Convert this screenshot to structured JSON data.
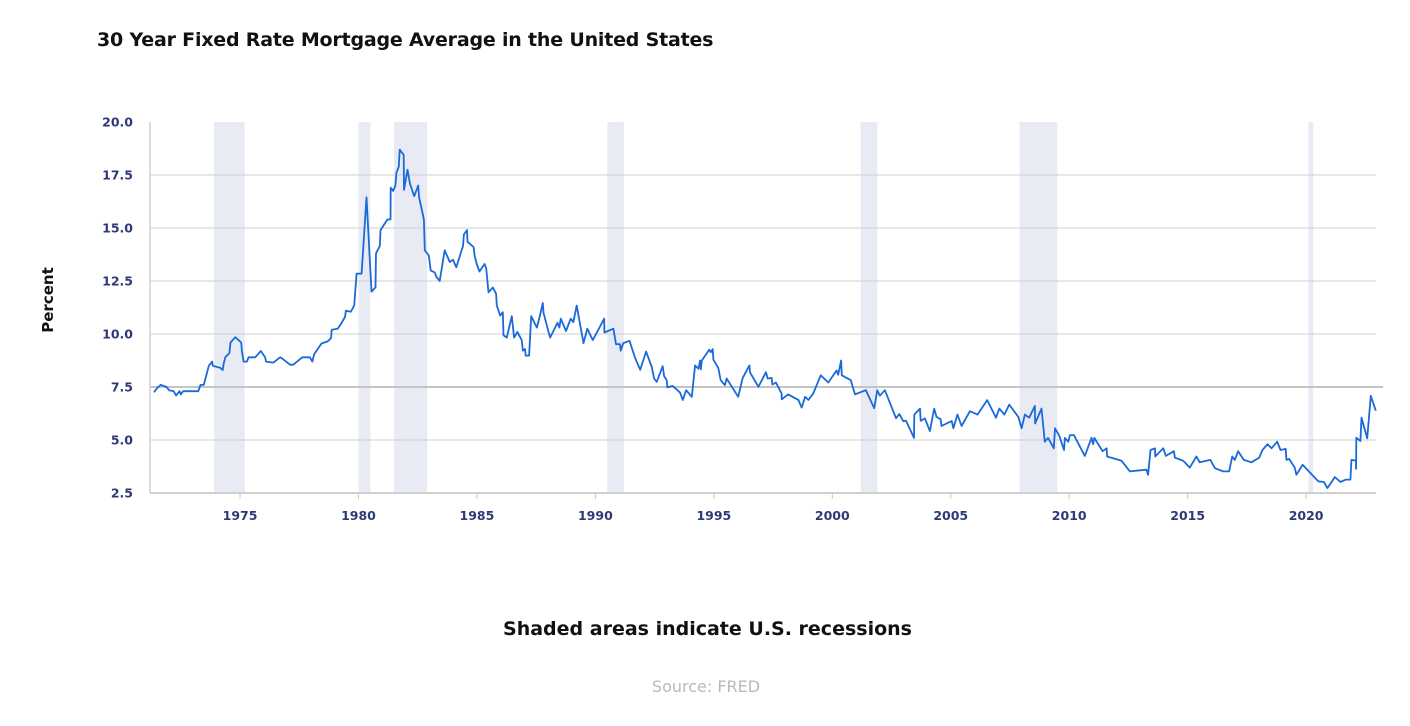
{
  "chart_data": {
    "type": "line",
    "title": "30 Year Fixed Rate Mortgage Average in the United States",
    "xlabel": "",
    "ylabel": "Percent",
    "note": "Shaded areas indicate U.S. recessions",
    "source": "Source: FRED",
    "xlim": [
      1971.2,
      2022.95
    ],
    "ylim": [
      2.5,
      20.0
    ],
    "yticks": [
      "2.5",
      "5.0",
      "7.5",
      "10.0",
      "12.5",
      "15.0",
      "17.5",
      "20.0"
    ],
    "xticks": [
      "1975",
      "1980",
      "1985",
      "1990",
      "1995",
      "2000",
      "2005",
      "2010",
      "2015",
      "2020"
    ],
    "grid": "horizontal",
    "legend": "none",
    "colors": {
      "line": "#1a6ad8",
      "recession": "#e8ebf4",
      "grid": "#cfcfcf",
      "tick_text": "#2e3a78"
    },
    "recessions": [
      [
        1973.9,
        1975.2
      ],
      [
        1980.0,
        1980.5
      ],
      [
        1981.5,
        1982.9
      ],
      [
        1990.5,
        1991.2
      ],
      [
        2001.2,
        2001.9
      ],
      [
        2007.9,
        2009.5
      ],
      [
        2020.1,
        2020.3
      ]
    ],
    "series": [
      {
        "points": [
          [
            1971.37,
            7.25
          ],
          [
            1971.5,
            7.45
          ],
          [
            1971.65,
            7.6
          ],
          [
            1971.9,
            7.5
          ],
          [
            1972.0,
            7.35
          ],
          [
            1972.2,
            7.3
          ],
          [
            1972.3,
            7.1
          ],
          [
            1972.45,
            7.3
          ],
          [
            1972.5,
            7.15
          ],
          [
            1972.6,
            7.3
          ],
          [
            1973.24,
            7.3
          ],
          [
            1973.33,
            7.6
          ],
          [
            1973.47,
            7.6
          ],
          [
            1973.68,
            8.5
          ],
          [
            1973.82,
            8.7
          ],
          [
            1973.85,
            8.5
          ],
          [
            1974.17,
            8.4
          ],
          [
            1974.27,
            8.3
          ],
          [
            1974.31,
            8.6
          ],
          [
            1974.38,
            8.9
          ],
          [
            1974.55,
            9.1
          ],
          [
            1974.6,
            9.6
          ],
          [
            1974.8,
            9.85
          ],
          [
            1975.05,
            9.6
          ],
          [
            1975.08,
            9.2
          ],
          [
            1975.15,
            8.7
          ],
          [
            1975.29,
            8.7
          ],
          [
            1975.36,
            8.9
          ],
          [
            1975.64,
            8.9
          ],
          [
            1975.88,
            9.2
          ],
          [
            1976.06,
            8.9
          ],
          [
            1976.1,
            8.7
          ],
          [
            1976.41,
            8.65
          ],
          [
            1976.69,
            8.9
          ],
          [
            1976.83,
            8.8
          ],
          [
            1977.11,
            8.55
          ],
          [
            1977.25,
            8.55
          ],
          [
            1977.63,
            8.9
          ],
          [
            1977.95,
            8.9
          ],
          [
            1978.05,
            8.7
          ],
          [
            1978.13,
            9.05
          ],
          [
            1978.44,
            9.55
          ],
          [
            1978.7,
            9.65
          ],
          [
            1978.84,
            9.8
          ],
          [
            1978.87,
            10.2
          ],
          [
            1979.12,
            10.25
          ],
          [
            1979.22,
            10.4
          ],
          [
            1979.43,
            10.8
          ],
          [
            1979.47,
            11.1
          ],
          [
            1979.68,
            11.05
          ],
          [
            1979.82,
            11.35
          ],
          [
            1979.92,
            12.85
          ],
          [
            1980.13,
            12.85
          ],
          [
            1980.34,
            16.45
          ],
          [
            1980.55,
            12.0
          ],
          [
            1980.72,
            12.2
          ],
          [
            1980.74,
            13.8
          ],
          [
            1980.9,
            14.15
          ],
          [
            1980.93,
            14.9
          ],
          [
            1981.22,
            15.4
          ],
          [
            1981.35,
            15.4
          ],
          [
            1981.36,
            16.9
          ],
          [
            1981.46,
            16.75
          ],
          [
            1981.56,
            17.0
          ],
          [
            1981.6,
            17.6
          ],
          [
            1981.7,
            17.9
          ],
          [
            1981.74,
            18.7
          ],
          [
            1981.91,
            18.45
          ],
          [
            1981.92,
            16.8
          ],
          [
            1982.07,
            17.75
          ],
          [
            1982.17,
            17.1
          ],
          [
            1982.35,
            16.5
          ],
          [
            1982.52,
            17.0
          ],
          [
            1982.56,
            16.45
          ],
          [
            1982.76,
            15.4
          ],
          [
            1982.8,
            13.95
          ],
          [
            1982.97,
            13.7
          ],
          [
            1983.05,
            13.0
          ],
          [
            1983.22,
            12.9
          ],
          [
            1983.29,
            12.7
          ],
          [
            1983.43,
            12.5
          ],
          [
            1983.64,
            13.95
          ],
          [
            1983.85,
            13.4
          ],
          [
            1983.99,
            13.5
          ],
          [
            1984.13,
            13.15
          ],
          [
            1984.41,
            14.15
          ],
          [
            1984.45,
            14.7
          ],
          [
            1984.58,
            14.9
          ],
          [
            1984.6,
            14.35
          ],
          [
            1984.86,
            14.1
          ],
          [
            1984.9,
            13.7
          ],
          [
            1984.99,
            13.3
          ],
          [
            1985.11,
            12.95
          ],
          [
            1985.32,
            13.3
          ],
          [
            1985.39,
            13.1
          ],
          [
            1985.49,
            11.96
          ],
          [
            1985.67,
            12.2
          ],
          [
            1985.81,
            11.9
          ],
          [
            1985.84,
            11.34
          ],
          [
            1985.98,
            10.87
          ],
          [
            1986.09,
            11.03
          ],
          [
            1986.12,
            9.94
          ],
          [
            1986.26,
            9.83
          ],
          [
            1986.47,
            10.84
          ],
          [
            1986.57,
            9.83
          ],
          [
            1986.71,
            10.1
          ],
          [
            1986.89,
            9.71
          ],
          [
            1986.94,
            9.21
          ],
          [
            1987.03,
            9.29
          ],
          [
            1987.06,
            8.98
          ],
          [
            1987.2,
            8.98
          ],
          [
            1987.29,
            10.84
          ],
          [
            1987.53,
            10.3
          ],
          [
            1987.67,
            10.92
          ],
          [
            1987.78,
            11.46
          ],
          [
            1987.81,
            11.0
          ],
          [
            1988.09,
            9.83
          ],
          [
            1988.4,
            10.53
          ],
          [
            1988.48,
            10.3
          ],
          [
            1988.54,
            10.72
          ],
          [
            1988.76,
            10.14
          ],
          [
            1988.96,
            10.72
          ],
          [
            1989.07,
            10.56
          ],
          [
            1989.21,
            11.34
          ],
          [
            1989.5,
            9.57
          ],
          [
            1989.66,
            10.25
          ],
          [
            1989.89,
            9.71
          ],
          [
            1990.37,
            10.72
          ],
          [
            1990.38,
            10.07
          ],
          [
            1990.76,
            10.25
          ],
          [
            1990.87,
            9.52
          ],
          [
            1991.04,
            9.52
          ],
          [
            1991.07,
            9.21
          ],
          [
            1991.18,
            9.57
          ],
          [
            1991.44,
            9.68
          ],
          [
            1991.68,
            8.86
          ],
          [
            1991.89,
            8.31
          ],
          [
            1992.14,
            9.17
          ],
          [
            1992.38,
            8.44
          ],
          [
            1992.48,
            7.9
          ],
          [
            1992.59,
            7.74
          ],
          [
            1992.84,
            8.48
          ],
          [
            1992.9,
            8.02
          ],
          [
            1993.01,
            7.82
          ],
          [
            1993.04,
            7.48
          ],
          [
            1993.26,
            7.55
          ],
          [
            1993.57,
            7.24
          ],
          [
            1993.69,
            6.89
          ],
          [
            1993.83,
            7.35
          ],
          [
            1994.07,
            7.04
          ],
          [
            1994.21,
            8.52
          ],
          [
            1994.35,
            8.36
          ],
          [
            1994.42,
            8.75
          ],
          [
            1994.45,
            8.33
          ],
          [
            1994.49,
            8.75
          ],
          [
            1994.81,
            9.26
          ],
          [
            1994.87,
            9.14
          ],
          [
            1994.95,
            9.29
          ],
          [
            1994.98,
            8.79
          ],
          [
            1995.19,
            8.39
          ],
          [
            1995.29,
            7.82
          ],
          [
            1995.47,
            7.59
          ],
          [
            1995.54,
            7.9
          ],
          [
            1996.03,
            7.04
          ],
          [
            1996.22,
            7.93
          ],
          [
            1996.5,
            8.52
          ],
          [
            1996.53,
            8.18
          ],
          [
            1996.88,
            7.51
          ],
          [
            1997.2,
            8.2
          ],
          [
            1997.27,
            7.9
          ],
          [
            1997.44,
            7.93
          ],
          [
            1997.47,
            7.62
          ],
          [
            1997.62,
            7.71
          ],
          [
            1997.86,
            7.2
          ],
          [
            1997.87,
            6.92
          ],
          [
            1998.14,
            7.15
          ],
          [
            1998.57,
            6.89
          ],
          [
            1998.71,
            6.53
          ],
          [
            1998.85,
            7.04
          ],
          [
            1998.99,
            6.89
          ],
          [
            1999.2,
            7.2
          ],
          [
            1999.51,
            8.05
          ],
          [
            1999.83,
            7.71
          ],
          [
            2000.18,
            8.28
          ],
          [
            2000.25,
            8.08
          ],
          [
            2000.37,
            8.75
          ],
          [
            2000.4,
            8.05
          ],
          [
            2000.78,
            7.82
          ],
          [
            2000.96,
            7.15
          ],
          [
            2001.42,
            7.35
          ],
          [
            2001.77,
            6.5
          ],
          [
            2001.9,
            7.35
          ],
          [
            2002.01,
            7.09
          ],
          [
            2002.22,
            7.35
          ],
          [
            2002.69,
            6.03
          ],
          [
            2002.83,
            6.22
          ],
          [
            2003.0,
            5.88
          ],
          [
            2003.11,
            5.91
          ],
          [
            2003.45,
            5.1
          ],
          [
            2003.46,
            6.2
          ],
          [
            2003.7,
            6.48
          ],
          [
            2003.73,
            5.9
          ],
          [
            2003.91,
            6.02
          ],
          [
            2004.12,
            5.42
          ],
          [
            2004.3,
            6.48
          ],
          [
            2004.4,
            6.09
          ],
          [
            2004.57,
            5.98
          ],
          [
            2004.61,
            5.66
          ],
          [
            2005.04,
            5.89
          ],
          [
            2005.11,
            5.55
          ],
          [
            2005.28,
            6.2
          ],
          [
            2005.46,
            5.66
          ],
          [
            2005.81,
            6.36
          ],
          [
            2006.13,
            6.2
          ],
          [
            2006.54,
            6.88
          ],
          [
            2006.91,
            6.05
          ],
          [
            2007.05,
            6.48
          ],
          [
            2007.26,
            6.2
          ],
          [
            2007.47,
            6.67
          ],
          [
            2007.85,
            6.09
          ],
          [
            2007.99,
            5.55
          ],
          [
            2008.13,
            6.2
          ],
          [
            2008.31,
            6.05
          ],
          [
            2008.55,
            6.61
          ],
          [
            2008.56,
            5.78
          ],
          [
            2008.83,
            6.48
          ],
          [
            2008.97,
            4.92
          ],
          [
            2009.11,
            5.1
          ],
          [
            2009.35,
            4.61
          ],
          [
            2009.4,
            5.55
          ],
          [
            2009.58,
            5.2
          ],
          [
            2009.78,
            4.53
          ],
          [
            2009.82,
            5.1
          ],
          [
            2009.96,
            4.92
          ],
          [
            2010.03,
            5.23
          ],
          [
            2010.2,
            5.23
          ],
          [
            2010.66,
            4.25
          ],
          [
            2010.94,
            5.1
          ],
          [
            2011.01,
            4.8
          ],
          [
            2011.06,
            5.1
          ],
          [
            2011.41,
            4.47
          ],
          [
            2011.58,
            4.61
          ],
          [
            2011.6,
            4.22
          ],
          [
            2012.21,
            4.02
          ],
          [
            2012.56,
            3.52
          ],
          [
            2013.26,
            3.6
          ],
          [
            2013.33,
            3.36
          ],
          [
            2013.43,
            4.53
          ],
          [
            2013.62,
            4.61
          ],
          [
            2013.63,
            4.22
          ],
          [
            2013.97,
            4.61
          ],
          [
            2014.08,
            4.25
          ],
          [
            2014.42,
            4.47
          ],
          [
            2014.46,
            4.17
          ],
          [
            2014.81,
            4.02
          ],
          [
            2015.09,
            3.7
          ],
          [
            2015.37,
            4.22
          ],
          [
            2015.51,
            3.95
          ],
          [
            2015.96,
            4.06
          ],
          [
            2016.15,
            3.67
          ],
          [
            2016.5,
            3.52
          ],
          [
            2016.75,
            3.52
          ],
          [
            2016.88,
            4.22
          ],
          [
            2016.99,
            4.06
          ],
          [
            2017.13,
            4.47
          ],
          [
            2017.37,
            4.06
          ],
          [
            2017.69,
            3.95
          ],
          [
            2018.02,
            4.17
          ],
          [
            2018.16,
            4.53
          ],
          [
            2018.37,
            4.8
          ],
          [
            2018.54,
            4.61
          ],
          [
            2018.78,
            4.92
          ],
          [
            2018.92,
            4.53
          ],
          [
            2019.14,
            4.58
          ],
          [
            2019.17,
            4.06
          ],
          [
            2019.28,
            4.11
          ],
          [
            2019.52,
            3.7
          ],
          [
            2019.59,
            3.36
          ],
          [
            2019.85,
            3.83
          ],
          [
            2020.51,
            3.05
          ],
          [
            2020.75,
            3.02
          ],
          [
            2020.9,
            2.73
          ],
          [
            2021.21,
            3.25
          ],
          [
            2021.45,
            3.02
          ],
          [
            2021.68,
            3.13
          ],
          [
            2021.87,
            3.13
          ],
          [
            2021.91,
            4.06
          ],
          [
            2022.1,
            4.03
          ],
          [
            2022.11,
            3.64
          ],
          [
            2022.12,
            5.11
          ],
          [
            2022.29,
            4.95
          ],
          [
            2022.34,
            6.05
          ],
          [
            2022.58,
            5.08
          ],
          [
            2022.73,
            7.08
          ],
          [
            2022.94,
            6.38
          ]
        ]
      }
    ]
  }
}
